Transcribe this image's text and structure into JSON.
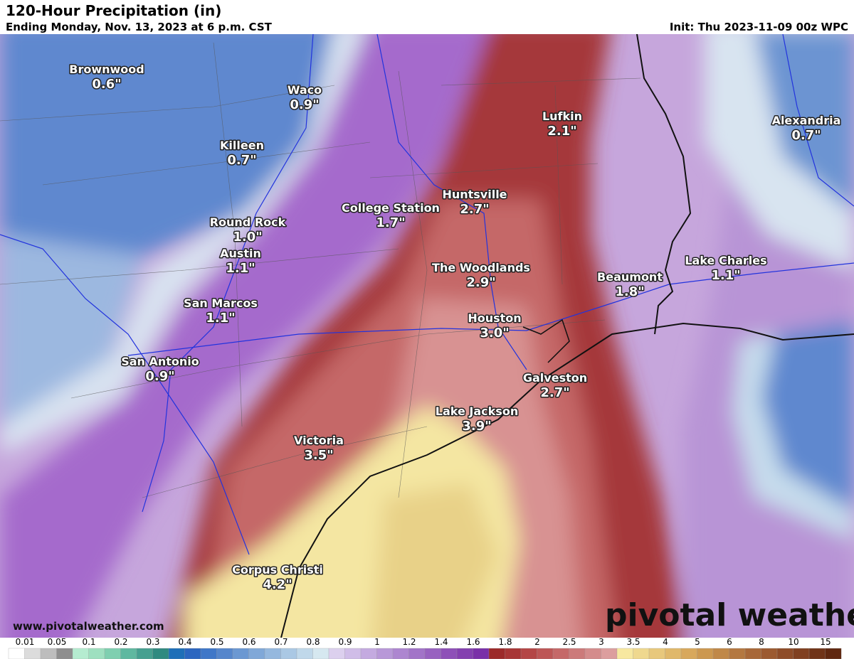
{
  "header": {
    "title": "120-Hour Precipitation (in)",
    "subtitle": "Ending Monday, Nov. 13, 2023 at 6 p.m. CST",
    "init": "Init: Thu 2023-11-09 00z WPC"
  },
  "cities": [
    {
      "name": "Brownwood",
      "value": "0.6\""
    },
    {
      "name": "Waco",
      "value": "0.9\""
    },
    {
      "name": "Killeen",
      "value": "0.7\""
    },
    {
      "name": "Round Rock",
      "value": "1.0\""
    },
    {
      "name": "Austin",
      "value": "1.1\""
    },
    {
      "name": "San Marcos",
      "value": "1.1\""
    },
    {
      "name": "San Antonio",
      "value": "0.9\""
    },
    {
      "name": "College Station",
      "value": "1.7\""
    },
    {
      "name": "Huntsville",
      "value": "2.7\""
    },
    {
      "name": "The Woodlands",
      "value": "2.9\""
    },
    {
      "name": "Houston",
      "value": "3.0\""
    },
    {
      "name": "Galveston",
      "value": "2.7\""
    },
    {
      "name": "Lake Jackson",
      "value": "3.9\""
    },
    {
      "name": "Victoria",
      "value": "3.5\""
    },
    {
      "name": "Corpus Christi",
      "value": "4.2\""
    },
    {
      "name": "Lufkin",
      "value": "2.1\""
    },
    {
      "name": "Beaumont",
      "value": "1.8\""
    },
    {
      "name": "Alexandria",
      "value": "0.7\""
    },
    {
      "name": "Lake Charles",
      "value": "1.1\""
    }
  ],
  "watermark": "pivotal weather",
  "url": "www.pivotalweather.com",
  "legend": {
    "labels": [
      "0.01",
      "0.05",
      "0.1",
      "0.2",
      "0.3",
      "0.4",
      "0.5",
      "0.6",
      "0.7",
      "0.8",
      "0.9",
      "1",
      "1.2",
      "1.4",
      "1.6",
      "1.8",
      "2",
      "2.5",
      "3",
      "3.5",
      "4",
      "5",
      "6",
      "8",
      "10",
      "15"
    ],
    "colors": [
      "#ffffff",
      "#dcdcdc",
      "#bdbdbd",
      "#8e8e8e",
      "#b5ecd0",
      "#9ee0c0",
      "#7fcfb0",
      "#5fb8a0",
      "#46a090",
      "#2f8a80",
      "#1e6fb8",
      "#2b66c0",
      "#3f77c8",
      "#5586cc",
      "#6b98d2",
      "#80a8d8",
      "#95b8de",
      "#aac8e4",
      "#c0d8ea",
      "#d6e8f0",
      "#dcd0ee",
      "#d0bde8",
      "#c4aae0",
      "#b898d8",
      "#ad86d0",
      "#a274c8",
      "#9862c0",
      "#8e50b8",
      "#8440b0",
      "#7a30a8",
      "#9c2a2a",
      "#a83636",
      "#b44646",
      "#bd5656",
      "#c56868",
      "#cc7a7a",
      "#d48c8c",
      "#dc9e9e",
      "#f7e8a0",
      "#efd88e",
      "#e8c87c",
      "#e0b86a",
      "#d8a85c",
      "#cc9850",
      "#c08848",
      "#b47840",
      "#a86838",
      "#9c5a30",
      "#8e4c28",
      "#804020",
      "#703418",
      "#602810"
    ]
  }
}
